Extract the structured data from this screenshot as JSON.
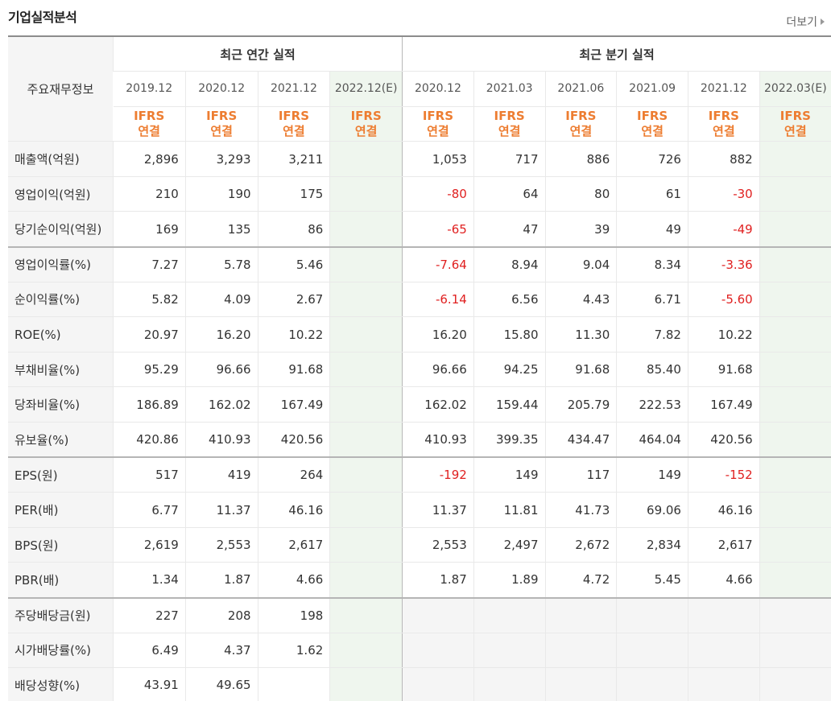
{
  "page": {
    "title": "기업실적분석",
    "more_label": "더보기"
  },
  "table": {
    "row_header": "주요재무정보",
    "groups": {
      "annual": "최근 연간 실적",
      "quarterly": "최근 분기 실적"
    },
    "annual_periods": [
      "2019.12",
      "2020.12",
      "2021.12",
      "2022.12(E)"
    ],
    "quarterly_periods": [
      "2020.12",
      "2021.03",
      "2021.06",
      "2021.09",
      "2021.12",
      "2022.03(E)"
    ],
    "basis_line1": "IFRS",
    "basis_line2": "연결",
    "rows": [
      {
        "label": "매출액(억원)",
        "annual": [
          "2,896",
          "3,293",
          "3,211",
          ""
        ],
        "quarterly": [
          "1,053",
          "717",
          "886",
          "726",
          "882",
          ""
        ]
      },
      {
        "label": "영업이익(억원)",
        "annual": [
          "210",
          "190",
          "175",
          ""
        ],
        "quarterly": [
          "-80",
          "64",
          "80",
          "61",
          "-30",
          ""
        ]
      },
      {
        "label": "당기순이익(억원)",
        "annual": [
          "169",
          "135",
          "86",
          ""
        ],
        "quarterly": [
          "-65",
          "47",
          "39",
          "49",
          "-49",
          ""
        ]
      },
      {
        "label": "영업이익률(%)",
        "annual": [
          "7.27",
          "5.78",
          "5.46",
          ""
        ],
        "quarterly": [
          "-7.64",
          "8.94",
          "9.04",
          "8.34",
          "-3.36",
          ""
        ]
      },
      {
        "label": "순이익률(%)",
        "annual": [
          "5.82",
          "4.09",
          "2.67",
          ""
        ],
        "quarterly": [
          "-6.14",
          "6.56",
          "4.43",
          "6.71",
          "-5.60",
          ""
        ]
      },
      {
        "label": "ROE(%)",
        "annual": [
          "20.97",
          "16.20",
          "10.22",
          ""
        ],
        "quarterly": [
          "16.20",
          "15.80",
          "11.30",
          "7.82",
          "10.22",
          ""
        ]
      },
      {
        "label": "부채비율(%)",
        "annual": [
          "95.29",
          "96.66",
          "91.68",
          ""
        ],
        "quarterly": [
          "96.66",
          "94.25",
          "91.68",
          "85.40",
          "91.68",
          ""
        ]
      },
      {
        "label": "당좌비율(%)",
        "annual": [
          "186.89",
          "162.02",
          "167.49",
          ""
        ],
        "quarterly": [
          "162.02",
          "159.44",
          "205.79",
          "222.53",
          "167.49",
          ""
        ]
      },
      {
        "label": "유보율(%)",
        "annual": [
          "420.86",
          "410.93",
          "420.56",
          ""
        ],
        "quarterly": [
          "410.93",
          "399.35",
          "434.47",
          "464.04",
          "420.56",
          ""
        ]
      },
      {
        "label": "EPS(원)",
        "annual": [
          "517",
          "419",
          "264",
          ""
        ],
        "quarterly": [
          "-192",
          "149",
          "117",
          "149",
          "-152",
          ""
        ]
      },
      {
        "label": "PER(배)",
        "annual": [
          "6.77",
          "11.37",
          "46.16",
          ""
        ],
        "quarterly": [
          "11.37",
          "11.81",
          "41.73",
          "69.06",
          "46.16",
          ""
        ]
      },
      {
        "label": "BPS(원)",
        "annual": [
          "2,619",
          "2,553",
          "2,617",
          ""
        ],
        "quarterly": [
          "2,553",
          "2,497",
          "2,672",
          "2,834",
          "2,617",
          ""
        ]
      },
      {
        "label": "PBR(배)",
        "annual": [
          "1.34",
          "1.87",
          "4.66",
          ""
        ],
        "quarterly": [
          "1.87",
          "1.89",
          "4.72",
          "5.45",
          "4.66",
          ""
        ]
      },
      {
        "label": "주당배당금(원)",
        "annual": [
          "227",
          "208",
          "198",
          ""
        ],
        "quarterly": null
      },
      {
        "label": "시가배당률(%)",
        "annual": [
          "6.49",
          "4.37",
          "1.62",
          ""
        ],
        "quarterly": null
      },
      {
        "label": "배당성향(%)",
        "annual": [
          "43.91",
          "49.65",
          "",
          ""
        ],
        "quarterly": null
      }
    ]
  },
  "colors": {
    "ifrs": "#ed7d31",
    "negative": "#e02020",
    "estimate_bg": "#eff6ee",
    "label_bg": "#f5f5f5"
  }
}
